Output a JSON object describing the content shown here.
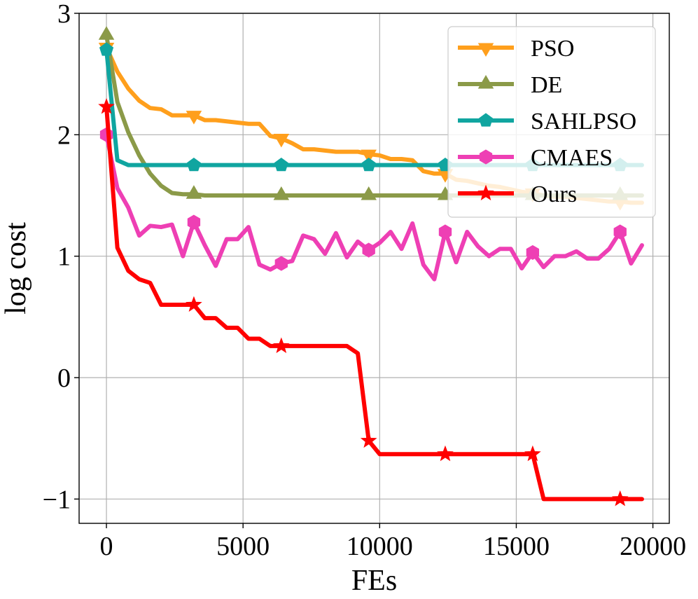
{
  "chart_data": {
    "type": "line",
    "xlabel": "FEs",
    "ylabel": "log cost",
    "xlim": [
      -1000,
      20600
    ],
    "ylim": [
      -1.2,
      3.0
    ],
    "xticks": [
      0,
      5000,
      10000,
      15000,
      20000
    ],
    "xtick_labels": [
      "0",
      "5000",
      "10000",
      "15000",
      "20000"
    ],
    "yticks": [
      -1,
      0,
      1,
      2,
      3
    ],
    "ytick_labels": [
      "−1",
      "0",
      "1",
      "2",
      "3"
    ],
    "grid": true,
    "legend_position": "top-right",
    "x": [
      0,
      400,
      800,
      1200,
      1600,
      2000,
      2400,
      2800,
      3200,
      3600,
      4000,
      4400,
      4800,
      5200,
      5600,
      6000,
      6400,
      6800,
      7200,
      7600,
      8000,
      8400,
      8800,
      9200,
      9600,
      10000,
      10400,
      10800,
      11200,
      11600,
      12000,
      12400,
      12800,
      13200,
      13600,
      14000,
      14400,
      14800,
      15200,
      15600,
      16000,
      16400,
      16800,
      17200,
      17600,
      18000,
      18400,
      18800,
      19200,
      19600
    ],
    "series": [
      {
        "name": "PSO",
        "color": "#ff9f1c",
        "marker": "triangle-down",
        "values": [
          2.72,
          2.52,
          2.38,
          2.28,
          2.22,
          2.21,
          2.16,
          2.16,
          2.16,
          2.12,
          2.12,
          2.11,
          2.1,
          2.09,
          2.09,
          1.99,
          1.97,
          1.93,
          1.88,
          1.88,
          1.87,
          1.86,
          1.86,
          1.86,
          1.84,
          1.83,
          1.8,
          1.8,
          1.79,
          1.7,
          1.68,
          1.68,
          1.63,
          1.62,
          1.6,
          1.58,
          1.57,
          1.55,
          1.53,
          1.52,
          1.5,
          1.49,
          1.49,
          1.48,
          1.47,
          1.46,
          1.45,
          1.45,
          1.44,
          1.44
        ],
        "marker_indices": [
          0,
          8,
          16,
          24,
          31,
          39,
          47
        ]
      },
      {
        "name": "DE",
        "color": "#8b9a48",
        "marker": "triangle-up",
        "values": [
          2.82,
          2.27,
          2.02,
          1.83,
          1.68,
          1.58,
          1.52,
          1.51,
          1.51,
          1.5,
          1.5,
          1.5,
          1.5,
          1.5,
          1.5,
          1.5,
          1.5,
          1.5,
          1.5,
          1.5,
          1.5,
          1.5,
          1.5,
          1.5,
          1.5,
          1.5,
          1.5,
          1.5,
          1.5,
          1.5,
          1.5,
          1.5,
          1.5,
          1.5,
          1.5,
          1.5,
          1.5,
          1.5,
          1.5,
          1.5,
          1.5,
          1.5,
          1.5,
          1.5,
          1.5,
          1.5,
          1.5,
          1.5,
          1.5,
          1.5
        ],
        "marker_indices": [
          0,
          8,
          16,
          24,
          31,
          39,
          47
        ]
      },
      {
        "name": "SAHLPSO",
        "color": "#10a5a0",
        "marker": "pentagon",
        "values": [
          2.7,
          1.79,
          1.75,
          1.75,
          1.75,
          1.75,
          1.75,
          1.75,
          1.75,
          1.75,
          1.75,
          1.75,
          1.75,
          1.75,
          1.75,
          1.75,
          1.75,
          1.75,
          1.75,
          1.75,
          1.75,
          1.75,
          1.75,
          1.75,
          1.75,
          1.75,
          1.75,
          1.75,
          1.75,
          1.75,
          1.75,
          1.75,
          1.75,
          1.75,
          1.75,
          1.75,
          1.75,
          1.75,
          1.75,
          1.75,
          1.75,
          1.75,
          1.75,
          1.75,
          1.75,
          1.75,
          1.75,
          1.75,
          1.75,
          1.75
        ],
        "marker_indices": [
          0,
          8,
          16,
          24,
          31,
          39,
          47
        ]
      },
      {
        "name": "CMAES",
        "color": "#ee3fb4",
        "marker": "hexagon",
        "values": [
          2.0,
          1.56,
          1.4,
          1.17,
          1.25,
          1.24,
          1.26,
          1.0,
          1.28,
          1.09,
          0.92,
          1.14,
          1.14,
          1.24,
          0.93,
          0.89,
          0.94,
          0.96,
          1.17,
          1.14,
          1.02,
          1.19,
          0.99,
          1.12,
          1.05,
          1.11,
          1.2,
          1.06,
          1.27,
          0.93,
          0.81,
          1.2,
          0.95,
          1.2,
          1.08,
          1.0,
          1.06,
          1.06,
          0.9,
          1.03,
          0.91,
          1.0,
          1.0,
          1.04,
          0.98,
          0.98,
          1.06,
          1.2,
          0.94,
          1.09
        ],
        "marker_indices": [
          0,
          8,
          16,
          24,
          31,
          39,
          47
        ]
      },
      {
        "name": "Ours",
        "color": "#ff0000",
        "marker": "star",
        "values": [
          2.23,
          1.07,
          0.88,
          0.81,
          0.78,
          0.6,
          0.6,
          0.6,
          0.6,
          0.49,
          0.49,
          0.41,
          0.41,
          0.32,
          0.32,
          0.26,
          0.26,
          0.26,
          0.26,
          0.26,
          0.26,
          0.26,
          0.26,
          0.2,
          -0.52,
          -0.63,
          -0.63,
          -0.63,
          -0.63,
          -0.63,
          -0.63,
          -0.63,
          -0.63,
          -0.63,
          -0.63,
          -0.63,
          -0.63,
          -0.63,
          -0.63,
          -0.63,
          -1.0,
          -1.0,
          -1.0,
          -1.0,
          -1.0,
          -1.0,
          -1.0,
          -1.0,
          -1.0,
          -1.0
        ],
        "marker_indices": [
          0,
          8,
          16,
          24,
          31,
          39,
          47
        ]
      }
    ]
  }
}
